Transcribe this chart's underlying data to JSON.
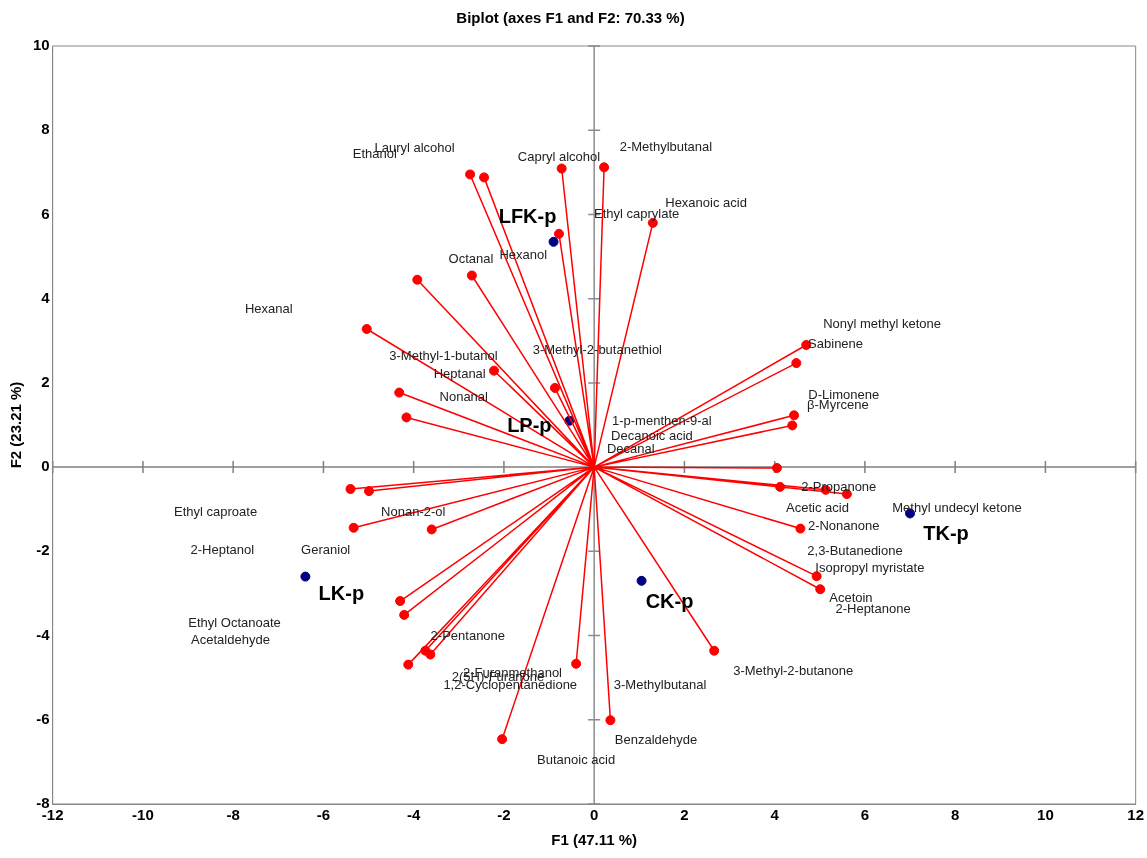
{
  "chart_data": {
    "type": "scatter",
    "title": "Biplot (axes F1 and F2: 70.33 %)",
    "xlabel": "F1 (47.11 %)",
    "ylabel": "F2 (23.21 %)",
    "xlim": [
      -12,
      12
    ],
    "ylim": [
      -8,
      10
    ],
    "xticks": [
      -12,
      -10,
      -8,
      -6,
      -4,
      -2,
      0,
      2,
      4,
      6,
      8,
      10,
      12
    ],
    "yticks": [
      -8,
      -6,
      -4,
      -2,
      0,
      2,
      4,
      6,
      8,
      10
    ],
    "grid": false,
    "legend": false,
    "ref_lines": [
      {
        "axis": "x",
        "value": 0,
        "color": "#8c8c8c"
      },
      {
        "axis": "y",
        "value": 0,
        "color": "#7f7f7f"
      }
    ],
    "series": [
      {
        "type": "line",
        "color": "#ff0000",
        "marker": "none",
        "x": [
          0,
          -2.75,
          0,
          -2.44,
          0,
          -0.72,
          0,
          0.22,
          0,
          1.3,
          0,
          -0.78,
          0,
          -2.71,
          0,
          -3.92,
          0,
          -5.04,
          0,
          -2.22,
          0,
          -0.87,
          0,
          -4.32,
          0,
          -4.16,
          0,
          4.7,
          0,
          4.48,
          0,
          4.43,
          0,
          4.39,
          0,
          4.05,
          0,
          4.12,
          0,
          5.13,
          0,
          5.6,
          0,
          4.57,
          0,
          4.93,
          0,
          5.01,
          0,
          2.66,
          0,
          0.36,
          0,
          -0.4,
          0,
          -2.04,
          0,
          -5.4,
          0,
          -4.99,
          0,
          -5.33,
          0,
          -3.6,
          0,
          -4.3,
          0,
          -4.21,
          0,
          -3.74,
          0,
          -3.63,
          0,
          -4.12
        ],
        "values": [
          0,
          6.95,
          0,
          6.88,
          0,
          7.09,
          0,
          7.12,
          0,
          5.8,
          0,
          5.54,
          0,
          4.55,
          0,
          4.45,
          0,
          3.28,
          0,
          2.29,
          0,
          1.88,
          0,
          1.77,
          0,
          1.18,
          0,
          2.9,
          0,
          2.47,
          0,
          1.23,
          0,
          0.99,
          0,
          -0.02,
          0,
          -0.47,
          0,
          -0.54,
          0,
          -0.64,
          0,
          -1.46,
          0,
          -2.59,
          0,
          -2.9,
          0,
          -4.36,
          0,
          -6.01,
          0,
          -4.67,
          0,
          -6.46,
          0,
          -0.52,
          0,
          -0.57,
          0,
          -1.44,
          0,
          -1.48,
          0,
          -3.18,
          0,
          -3.51,
          0,
          -4.36,
          0,
          -4.45,
          0,
          -4.69
        ]
      },
      {
        "color": "#ff0000",
        "marker": "circle",
        "x": [
          -2.75,
          -2.44,
          -0.72,
          0.22,
          1.3,
          -0.78,
          -2.71,
          -3.92,
          -5.04,
          -2.22,
          -0.87,
          -4.32,
          -4.16,
          4.7,
          4.48,
          4.43,
          4.39,
          4.05,
          4.12,
          5.13,
          5.6,
          4.57,
          4.93,
          5.01,
          2.66,
          0.36,
          -0.4,
          -2.04,
          -5.4,
          -4.99,
          -5.33,
          -3.6,
          -4.3,
          -4.21,
          -3.74,
          -3.63,
          -4.12
        ],
        "values": [
          6.95,
          6.88,
          7.09,
          7.12,
          5.8,
          5.54,
          4.55,
          4.45,
          3.28,
          2.29,
          1.88,
          1.77,
          1.18,
          2.9,
          2.47,
          1.23,
          0.99,
          -0.02,
          -0.47,
          -0.54,
          -0.64,
          -1.46,
          -2.59,
          -2.9,
          -4.36,
          -6.01,
          -4.67,
          -6.46,
          -0.52,
          -0.57,
          -1.44,
          -1.48,
          -3.18,
          -3.51,
          -4.36,
          -4.45,
          -4.69
        ]
      },
      {
        "color": "#000080",
        "marker": "circle",
        "x": [
          -0.9,
          -0.55,
          -6.4,
          1.05,
          7.0
        ],
        "values": [
          5.35,
          1.1,
          -2.6,
          -2.7,
          -1.1
        ],
        "value_labels": [
          "LFK-p",
          "LP-p",
          "LK-p",
          "CK-p",
          "TK-p"
        ]
      }
    ],
    "annotations": [
      "Lauryl alcohol",
      "Ethanol",
      "Capryl alcohol",
      "2-Methylbutanal",
      "Hexanoic acid",
      "Ethyl caprylate",
      "Hexanol",
      "Octanal",
      "Hexanal",
      "3-Methyl-1-butanol",
      "3-Methyl-2-butanethiol",
      "Heptanal",
      "Nonanal",
      "Nonyl methyl ketone",
      "Sabinene",
      "D-Limonene",
      "β-Myrcene",
      "1-p-menthen-9-al",
      "Decanoic acid",
      "Decanal",
      "2-Propanone",
      "Methyl undecyl ketone",
      "Acetic acid",
      "2-Nonanone",
      "2,3-Butanedione",
      "Isopropyl myristate",
      "Acetoin",
      "2-Heptanone",
      "3-Methyl-2-butanone",
      "3-Methylbutanal",
      "Benzaldehyde",
      "Butanoic acid",
      "2-Furanmethanol",
      "2(5H)-Furanone",
      "1,2-Cyclopentanedione",
      "2-Pentanone",
      "Ethyl Octanoate",
      "Acetaldehyde",
      "Geraniol",
      "2-Heptanol",
      "Nonan-2-ol",
      "Ethyl caproate"
    ]
  }
}
